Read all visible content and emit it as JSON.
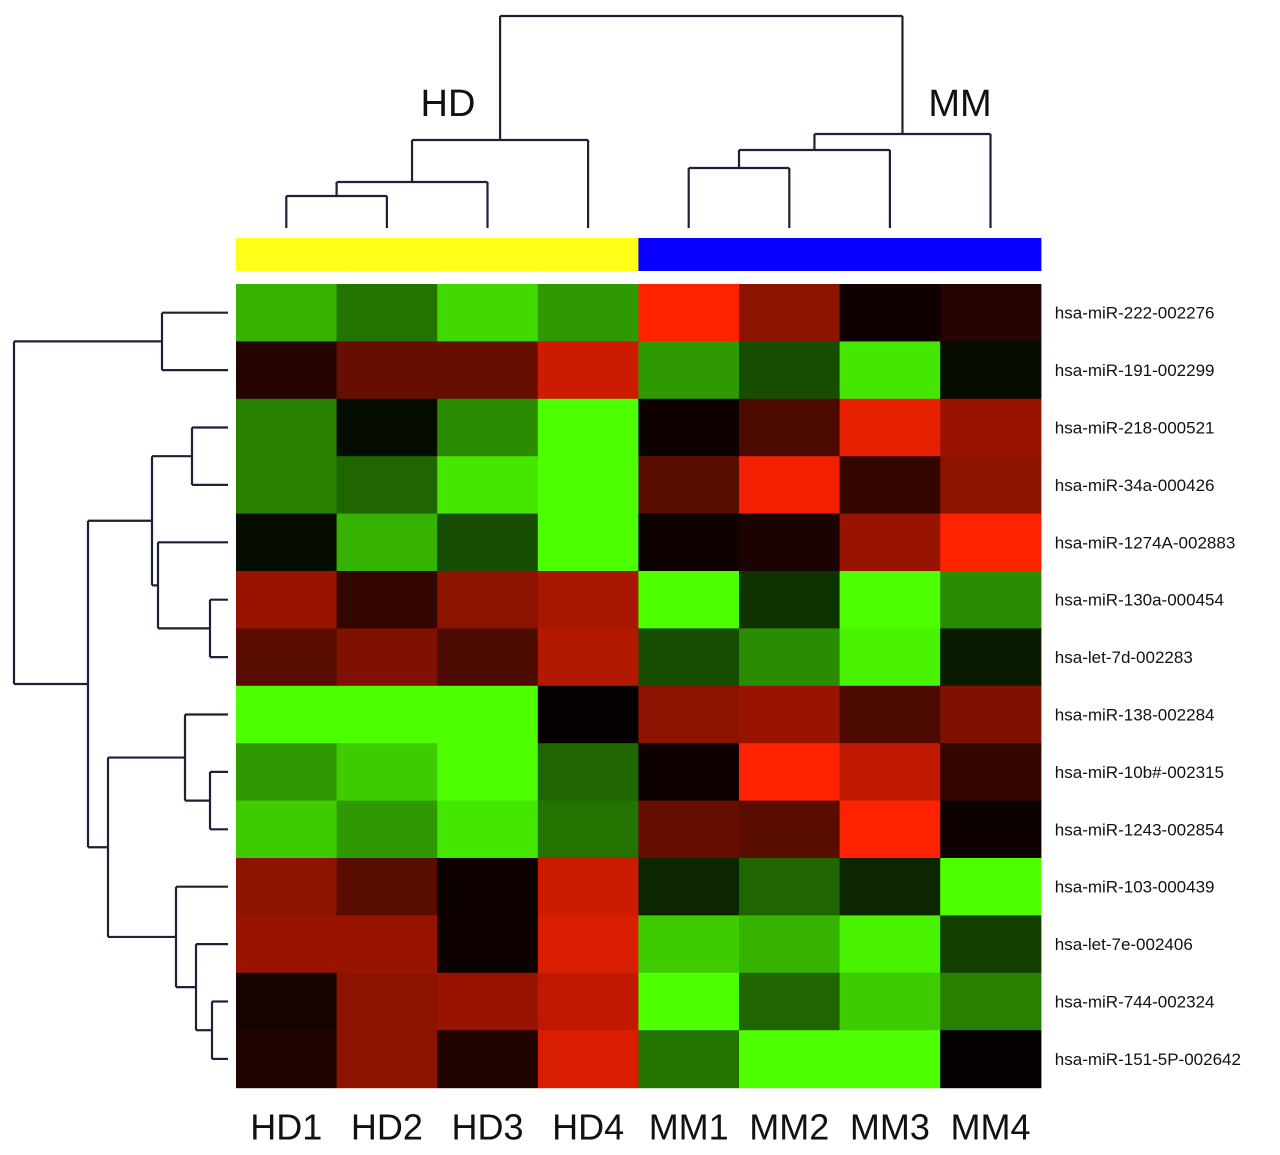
{
  "chart_data": {
    "type": "heatmap",
    "columns": [
      "HD1",
      "HD2",
      "HD3",
      "HD4",
      "MM1",
      "MM2",
      "MM3",
      "MM4"
    ],
    "rows": [
      "hsa-miR-222-002276",
      "hsa-miR-191-002299",
      "hsa-miR-218-000521",
      "hsa-miR-34a-000426",
      "hsa-miR-1274A-002883",
      "hsa-miR-130a-000454",
      "hsa-let-7d-002283",
      "hsa-miR-138-002284",
      "hsa-miR-10b#-002315",
      "hsa-miR-1243-002854",
      "hsa-miR-103-000439",
      "hsa-let-7e-002406",
      "hsa-miR-744-002324",
      "hsa-miR-151-5P-002642"
    ],
    "values": [
      [
        -0.7,
        -0.45,
        -0.85,
        -0.6,
        1.0,
        0.55,
        0.05,
        0.15
      ],
      [
        0.15,
        0.4,
        0.4,
        0.8,
        -0.6,
        -0.3,
        -0.9,
        -0.05
      ],
      [
        -0.5,
        -0.05,
        -0.55,
        -1.0,
        0.05,
        0.3,
        0.9,
        0.6
      ],
      [
        -0.5,
        -0.4,
        -0.9,
        -1.0,
        0.35,
        0.95,
        0.2,
        0.55
      ],
      [
        -0.05,
        -0.7,
        -0.3,
        -1.0,
        0.05,
        0.1,
        0.6,
        1.0
      ],
      [
        0.6,
        0.2,
        0.55,
        0.65,
        -1.0,
        -0.2,
        -1.0,
        -0.55
      ],
      [
        0.35,
        0.5,
        0.3,
        0.7,
        -0.3,
        -0.55,
        -0.95,
        -0.1
      ],
      [
        -1.0,
        -1.0,
        -1.0,
        0.02,
        0.55,
        0.6,
        0.3,
        0.5
      ],
      [
        -0.6,
        -0.8,
        -1.0,
        -0.4,
        0.05,
        1.0,
        0.75,
        0.2
      ],
      [
        -0.8,
        -0.6,
        -0.9,
        -0.45,
        0.4,
        0.35,
        1.0,
        0.05
      ],
      [
        0.55,
        0.35,
        0.05,
        0.8,
        -0.15,
        -0.4,
        -0.15,
        -1.0
      ],
      [
        0.6,
        0.6,
        0.05,
        0.85,
        -0.8,
        -0.7,
        -0.95,
        -0.25
      ],
      [
        0.08,
        0.55,
        0.6,
        0.75,
        -1.0,
        -0.4,
        -0.8,
        -0.5
      ],
      [
        0.12,
        0.55,
        0.12,
        0.85,
        -0.45,
        -1.0,
        -1.0,
        0.02
      ]
    ],
    "scale": {
      "min": -1,
      "max": 1,
      "low_color": "#4dff00",
      "mid_color": "#000000",
      "high_color": "#ff2200"
    },
    "column_groups": [
      {
        "label": "HD",
        "color": "#ffff1a",
        "columns": [
          "HD1",
          "HD2",
          "HD3",
          "HD4"
        ]
      },
      {
        "label": "MM",
        "color": "#0a00ff",
        "columns": [
          "MM1",
          "MM2",
          "MM3",
          "MM4"
        ]
      }
    ],
    "column_dendrogram": true,
    "row_dendrogram": true
  }
}
